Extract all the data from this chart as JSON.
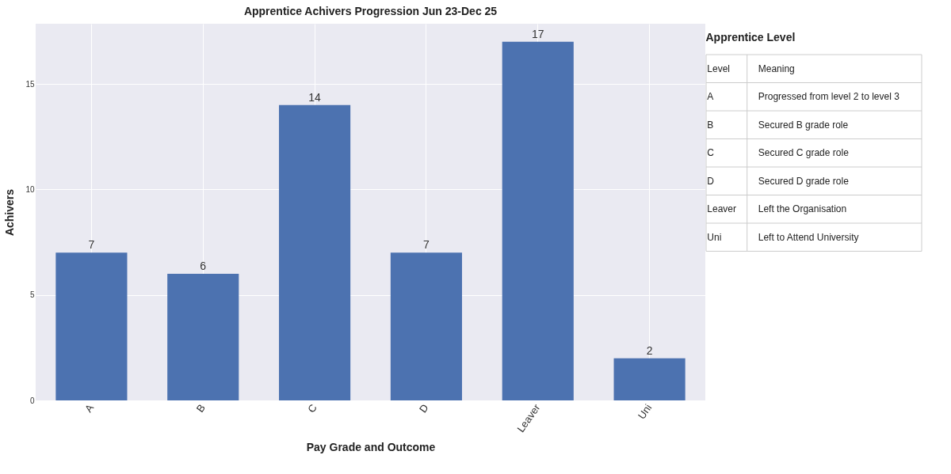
{
  "chart_data": [
    {
      "type": "bar",
      "title": "Apprentice Achivers Progression Jun 23-Dec 25",
      "xlabel": "Pay Grade and Outcome",
      "ylabel": "Achivers",
      "categories": [
        "A",
        "B",
        "C",
        "D",
        "Leaver",
        "Uni"
      ],
      "values": [
        7,
        6,
        14,
        7,
        17,
        2
      ],
      "color": "#4c72b0",
      "ylim": [
        0,
        17.85
      ],
      "yticks": [
        0,
        5,
        10,
        15
      ],
      "grid": true,
      "data_labels": true
    },
    {
      "type": "other",
      "title": "Apprentice Level",
      "annotations": [
        "Level",
        "Meaning",
        "A",
        "Progressed from level 2 to level 3",
        "B",
        "Secured B grade role",
        "C",
        "Secured C grade role",
        "D",
        "Secured D grade role",
        "Leaver",
        "Left the Organisation",
        "Uni",
        "Left to Attend University"
      ]
    }
  ]
}
